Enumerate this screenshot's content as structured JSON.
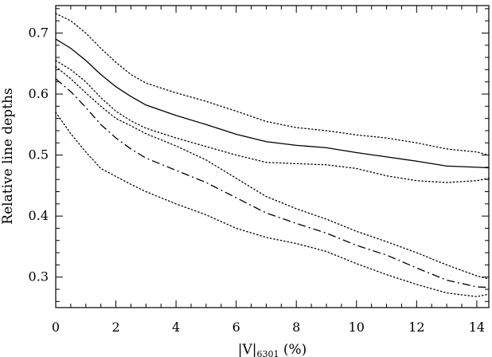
{
  "chart_data": {
    "type": "line",
    "xlabel": "|V|6301 (%)",
    "xlabel_parts": {
      "main": "|V|",
      "sub": "6301",
      "tail": " (%)"
    },
    "ylabel": "Relative line depths",
    "xlim": [
      0,
      14.4
    ],
    "ylim": [
      0.25,
      0.745
    ],
    "xticks": [
      0,
      2,
      4,
      6,
      8,
      10,
      12,
      14
    ],
    "xtick_labels": [
      "0",
      "2",
      "4",
      "6",
      "8",
      "10",
      "12",
      "14"
    ],
    "xminor": 0.5,
    "yticks": [
      0.3,
      0.4,
      0.5,
      0.6,
      0.7
    ],
    "ytick_labels": [
      "0.3",
      "0.4",
      "0.5",
      "0.6",
      "0.7"
    ],
    "yminor": 0.02,
    "series": [
      {
        "style": "solid",
        "x": [
          0,
          0.5,
          1.0,
          1.5,
          2.0,
          2.5,
          3.0,
          4.0,
          5.0,
          6.0,
          7.0,
          8.0,
          9.0,
          10.0,
          11.0,
          12.0,
          13.0,
          14.0,
          14.4
        ],
        "y": [
          0.69,
          0.675,
          0.655,
          0.632,
          0.612,
          0.596,
          0.582,
          0.565,
          0.55,
          0.534,
          0.522,
          0.516,
          0.512,
          0.504,
          0.497,
          0.49,
          0.482,
          0.48,
          0.479
        ]
      },
      {
        "style": "dotted",
        "x": [
          0,
          0.5,
          1.0,
          1.5,
          2.0,
          2.5,
          3.0,
          4.0,
          5.0,
          6.0,
          7.0,
          8.0,
          9.0,
          10.0,
          11.0,
          12.0,
          13.0,
          14.0,
          14.4
        ],
        "y": [
          0.732,
          0.72,
          0.7,
          0.675,
          0.652,
          0.632,
          0.618,
          0.602,
          0.588,
          0.572,
          0.555,
          0.545,
          0.54,
          0.533,
          0.528,
          0.52,
          0.51,
          0.505,
          0.5
        ]
      },
      {
        "style": "dotted",
        "x": [
          0,
          0.5,
          1.0,
          1.5,
          2.0,
          2.5,
          3.0,
          4.0,
          5.0,
          6.0,
          7.0,
          8.0,
          9.0,
          10.0,
          11.0,
          12.0,
          13.0,
          14.0,
          14.4
        ],
        "y": [
          0.655,
          0.64,
          0.62,
          0.594,
          0.572,
          0.556,
          0.544,
          0.528,
          0.514,
          0.5,
          0.488,
          0.486,
          0.484,
          0.478,
          0.466,
          0.458,
          0.455,
          0.458,
          0.462
        ]
      },
      {
        "style": "dashdot",
        "x": [
          0,
          0.5,
          1.0,
          1.5,
          2.0,
          2.5,
          3.0,
          4.0,
          5.0,
          6.0,
          7.0,
          8.0,
          9.0,
          10.0,
          11.0,
          12.0,
          13.0,
          14.0,
          14.4
        ],
        "y": [
          0.625,
          0.604,
          0.578,
          0.55,
          0.528,
          0.51,
          0.495,
          0.475,
          0.455,
          0.43,
          0.405,
          0.388,
          0.372,
          0.352,
          0.336,
          0.315,
          0.295,
          0.284,
          0.283
        ]
      },
      {
        "style": "dotted",
        "x": [
          0,
          0.5,
          1.0,
          1.5,
          2.0,
          2.5,
          3.0,
          4.0,
          5.0,
          6.0,
          7.0,
          8.0,
          9.0,
          10.0,
          11.0,
          12.0,
          13.0,
          14.0,
          14.4
        ],
        "y": [
          0.645,
          0.625,
          0.602,
          0.58,
          0.56,
          0.548,
          0.535,
          0.515,
          0.492,
          0.462,
          0.432,
          0.412,
          0.395,
          0.375,
          0.358,
          0.34,
          0.32,
          0.302,
          0.297
        ]
      },
      {
        "style": "dotted",
        "x": [
          0,
          0.5,
          1.0,
          1.5,
          2.0,
          2.5,
          3.0,
          4.0,
          5.0,
          6.0,
          7.0,
          8.0,
          9.0,
          10.0,
          11.0,
          12.0,
          13.0,
          14.0,
          14.4
        ],
        "y": [
          0.57,
          0.535,
          0.505,
          0.478,
          0.465,
          0.452,
          0.44,
          0.42,
          0.402,
          0.38,
          0.365,
          0.355,
          0.342,
          0.322,
          0.304,
          0.288,
          0.274,
          0.268,
          0.272
        ]
      }
    ]
  }
}
